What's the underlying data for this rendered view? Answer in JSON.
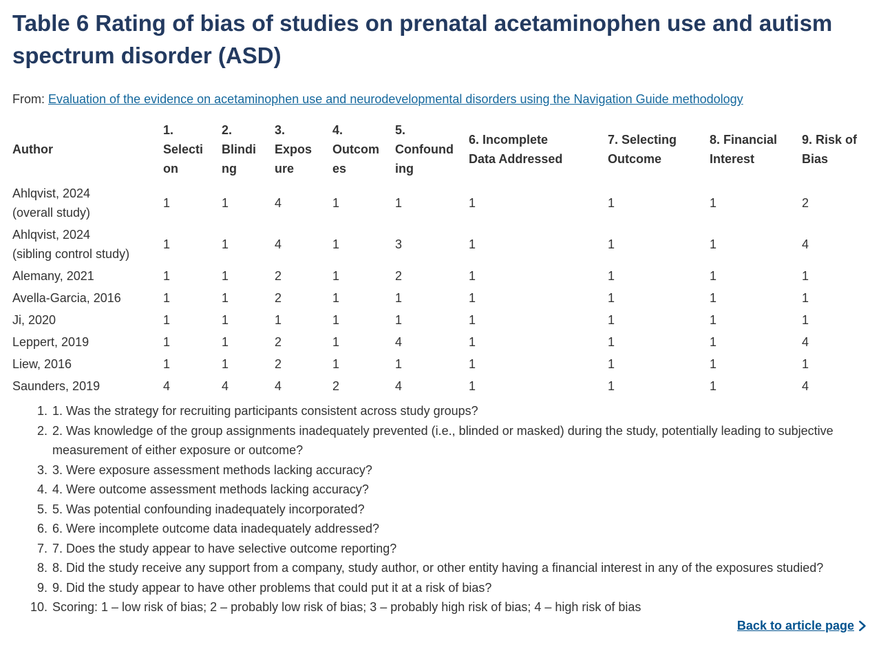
{
  "header": {
    "title": "Table 6 Rating of bias of studies on prenatal acetaminophen use and autism spectrum disorder (ASD)",
    "from_label": "From:",
    "article_link": "Evaluation of the evidence on acetaminophen use and neurodevelopmental disorders using the Navigation Guide methodology"
  },
  "table": {
    "columns": [
      "Author",
      "1. Selection",
      "2. Blinding",
      "3. Exposure",
      "4. Outcomes",
      "5. Confounding",
      "6. Incomplete Data Addressed",
      "7. Selecting Outcome",
      "8. Financial Interest",
      "9. Risk of Bias"
    ],
    "rows": [
      {
        "author": "Ahlqvist, 2024",
        "author_note": "(overall study)",
        "values": [
          1,
          1,
          4,
          1,
          1,
          1,
          1,
          1,
          2
        ]
      },
      {
        "author": "Ahlqvist, 2024",
        "author_note": "(sibling control study)",
        "values": [
          1,
          1,
          4,
          1,
          3,
          1,
          1,
          1,
          4
        ]
      },
      {
        "author": "Alemany, 2021",
        "values": [
          1,
          1,
          2,
          1,
          2,
          1,
          1,
          1,
          1
        ]
      },
      {
        "author": "Avella-Garcia, 2016",
        "values": [
          1,
          1,
          2,
          1,
          1,
          1,
          1,
          1,
          1
        ]
      },
      {
        "author": "Ji, 2020",
        "values": [
          1,
          1,
          1,
          1,
          1,
          1,
          1,
          1,
          1
        ]
      },
      {
        "author": "Leppert, 2019",
        "values": [
          1,
          1,
          2,
          1,
          4,
          1,
          1,
          1,
          4
        ]
      },
      {
        "author": "Liew, 2016",
        "values": [
          1,
          1,
          2,
          1,
          1,
          1,
          1,
          1,
          1
        ]
      },
      {
        "author": "Saunders, 2019",
        "values": [
          4,
          4,
          4,
          2,
          4,
          1,
          1,
          1,
          4
        ]
      }
    ]
  },
  "footnotes": [
    "1. Was the strategy for recruiting participants consistent across study groups?",
    "2. Was knowledge of the group assignments inadequately prevented (i.e., blinded or masked) during the study, potentially leading to subjective measurement of either exposure or outcome?",
    "3. Were exposure assessment methods lacking accuracy?",
    "4. Were outcome assessment methods lacking accuracy?",
    "5. Was potential confounding inadequately incorporated?",
    "6. Were incomplete outcome data inadequately addressed?",
    "7. Does the study appear to have selective outcome reporting?",
    "8. Did the study receive any support from a company, study author, or other entity having a financial interest in any of the exposures studied?",
    "9. Did the study appear to have other problems that could put it at a risk of bias?",
    "Scoring: 1 – low risk of bias; 2 – probably low risk of bias; 3 – probably high risk of bias; 4 – high risk of bias"
  ],
  "footer": {
    "back_link_label": "Back to article page",
    "back_link_icon": "chevron-right-icon"
  },
  "colors": {
    "title": "#233a60",
    "body_text": "#333333",
    "article_link": "#15689d",
    "back_link": "#02538f",
    "background": "#ffffff"
  }
}
